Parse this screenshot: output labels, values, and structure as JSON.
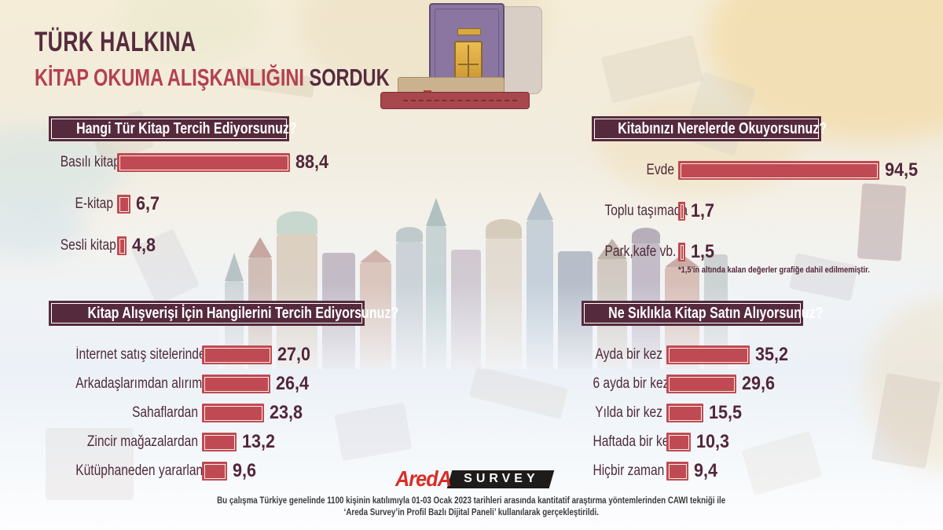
{
  "title": {
    "line1": "TÜRK HALKINA",
    "line2_red": "KİTAP OKUMA ALIŞKANLIĞINI",
    "line2_dark": "SORDUK"
  },
  "charts": [
    {
      "title": "Hangi Tür Kitap Tercih Ediyorsunuz?",
      "items": [
        {
          "label": "Basılı kitap",
          "value": 88.4,
          "display": "88,4"
        },
        {
          "label": "E-kitap",
          "value": 6.7,
          "display": "6,7"
        },
        {
          "label": "Sesli kitap",
          "value": 4.8,
          "display": "4,8"
        }
      ]
    },
    {
      "title": "Kitabınızı Nerelerde Okuyorsunuz?",
      "items": [
        {
          "label": "Evde",
          "value": 94.5,
          "display": "94,5"
        },
        {
          "label": "Toplu taşımada",
          "value": 1.7,
          "display": "1,7"
        },
        {
          "label": "Park,kafe vb.",
          "value": 1.5,
          "display": "1,5"
        }
      ],
      "footnote": "*1,5'in altında kalan değerler grafiğe dahil edilmemiştir."
    },
    {
      "title": "Kitap Alışverişi İçin Hangilerini Tercih Ediyorsunuz?",
      "items": [
        {
          "label": "İnternet satış sitelerinden",
          "value": 27.0,
          "display": "27,0"
        },
        {
          "label": "Arkadaşlarımdan alırım",
          "value": 26.4,
          "display": "26,4"
        },
        {
          "label": "Sahaflardan",
          "value": 23.8,
          "display": "23,8"
        },
        {
          "label": "Zincir mağazalardan",
          "value": 13.2,
          "display": "13,2"
        },
        {
          "label": "Kütüphaneden yararlanırım",
          "value": 9.6,
          "display": "9,6"
        }
      ]
    },
    {
      "title": "Ne Sıklıkla Kitap Satın Alıyorsunuz?",
      "items": [
        {
          "label": "Ayda bir kez",
          "value": 35.2,
          "display": "35,2"
        },
        {
          "label": "6 ayda bir kez",
          "value": 29.6,
          "display": "29,6"
        },
        {
          "label": "Yılda bir kez",
          "value": 15.5,
          "display": "15,5"
        },
        {
          "label": "Haftada bir kez",
          "value": 10.3,
          "display": "10,3"
        },
        {
          "label": "Hiçbir zaman",
          "value": 9.4,
          "display": "9,4"
        }
      ]
    }
  ],
  "logo": {
    "brand": "AredA",
    "suffix": "SURVEY"
  },
  "footer": {
    "line1": "Bu çalışma Türkiye genelinde 1100 kişinin katılımıyla 01-03 Ocak 2023 tarihleri arasında kantitatif araştırma yöntemlerinden CAWI tekniği ile",
    "line2": "‘Areda Survey’in Profil Bazlı Dijital Paneli’ kullanılarak gerçekleştirildi."
  },
  "colors": {
    "maroon": "#562a3d",
    "bar_red": "#c04a54",
    "bar_frame": "#f6eddb",
    "title_red": "#b4414f",
    "logo_red": "#d92d27",
    "logo_black": "#1d1c1a"
  },
  "chart_data": [
    {
      "type": "bar",
      "orientation": "horizontal",
      "title": "Hangi Tür Kitap Tercih Ediyorsunuz?",
      "categories": [
        "Basılı kitap",
        "E-kitap",
        "Sesli kitap"
      ],
      "values": [
        88.4,
        6.7,
        4.8
      ],
      "unit": "%",
      "xlim": [
        0,
        100
      ],
      "grid": false,
      "legend": "none"
    },
    {
      "type": "bar",
      "orientation": "horizontal",
      "title": "Kitabınızı Nerelerde Okuyorsunuz?",
      "categories": [
        "Evde",
        "Toplu taşımada",
        "Park,kafe vb."
      ],
      "values": [
        94.5,
        1.7,
        1.5
      ],
      "unit": "%",
      "xlim": [
        0,
        100
      ],
      "grid": false,
      "legend": "none",
      "annotation": "*1,5'in altında kalan değerler grafiğe dahil edilmemiştir."
    },
    {
      "type": "bar",
      "orientation": "horizontal",
      "title": "Kitap Alışverişi İçin Hangilerini Tercih Ediyorsunuz?",
      "categories": [
        "İnternet satış sitelerinden",
        "Arkadaşlarımdan alırım",
        "Sahaflardan",
        "Zincir mağazalardan",
        "Kütüphaneden yararlanırım"
      ],
      "values": [
        27.0,
        26.4,
        23.8,
        13.2,
        9.6
      ],
      "unit": "%",
      "xlim": [
        0,
        100
      ],
      "grid": false,
      "legend": "none"
    },
    {
      "type": "bar",
      "orientation": "horizontal",
      "title": "Ne Sıklıkla Kitap Satın Alıyorsunuz?",
      "categories": [
        "Ayda bir kez",
        "6 ayda bir kez",
        "Yılda bir kez",
        "Haftada bir kez",
        "Hiçbir zaman"
      ],
      "values": [
        35.2,
        29.6,
        15.5,
        10.3,
        9.4
      ],
      "unit": "%",
      "xlim": [
        0,
        100
      ],
      "grid": false,
      "legend": "none"
    }
  ]
}
